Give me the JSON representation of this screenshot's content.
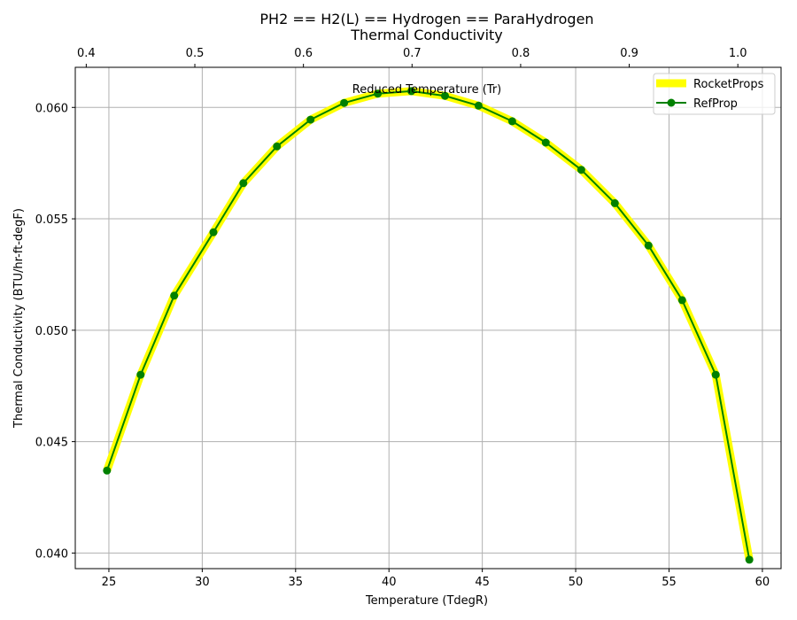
{
  "chart_data": {
    "type": "line",
    "title_line1": "PH2 == H2(L) == Hydrogen == ParaHydrogen",
    "title_line2": "Thermal Conductivity",
    "xlabel": "Temperature (TdegR)",
    "ylabel": "Thermal Conductivity (BTU/hr-ft-degF)",
    "top_xlabel": "Reduced Temperature (Tr)",
    "xlim": [
      23.2,
      61.0
    ],
    "ylim": [
      0.0393,
      0.0618
    ],
    "top_xlim": [
      0.3899,
      1.0398
    ],
    "xticks": [
      25,
      30,
      35,
      40,
      45,
      50,
      55,
      60
    ],
    "xtick_labels": [
      "25",
      "30",
      "35",
      "40",
      "45",
      "50",
      "55",
      "60"
    ],
    "yticks": [
      0.04,
      0.045,
      0.05,
      0.055,
      0.06
    ],
    "ytick_labels": [
      "0.040",
      "0.045",
      "0.050",
      "0.055",
      "0.060"
    ],
    "top_xticks": [
      0.4,
      0.5,
      0.6,
      0.7,
      0.8,
      0.9,
      1.0
    ],
    "top_xtick_labels": [
      "0.4",
      "0.5",
      "0.6",
      "0.7",
      "0.8",
      "0.9",
      "1.0"
    ],
    "grid": true,
    "legend_position": "top-right",
    "series": [
      {
        "name": "RocketProps",
        "color": "#ffff00",
        "x": [
          24.9,
          26.7,
          28.5,
          30.6,
          32.2,
          34.0,
          35.8,
          37.6,
          39.4,
          41.2,
          43.0,
          44.8,
          46.6,
          48.4,
          50.3,
          52.1,
          53.9,
          55.7,
          57.5,
          59.3
        ],
        "values": [
          0.0437,
          0.048,
          0.05155,
          0.0544,
          0.0566,
          0.05825,
          0.05945,
          0.0602,
          0.06062,
          0.06073,
          0.06052,
          0.06008,
          0.05938,
          0.05842,
          0.0572,
          0.0557,
          0.0538,
          0.05135,
          0.048,
          0.0397
        ]
      },
      {
        "name": "RefProp",
        "color": "#008000",
        "marker": "circle",
        "x": [
          24.9,
          26.7,
          28.5,
          30.6,
          32.2,
          34.0,
          35.8,
          37.6,
          39.4,
          41.2,
          43.0,
          44.8,
          46.6,
          48.4,
          50.3,
          52.1,
          53.9,
          55.7,
          57.5,
          59.3
        ],
        "values": [
          0.0437,
          0.048,
          0.05155,
          0.0544,
          0.0566,
          0.05825,
          0.05945,
          0.0602,
          0.06062,
          0.06073,
          0.06052,
          0.06008,
          0.05938,
          0.05842,
          0.0572,
          0.0557,
          0.0538,
          0.05135,
          0.048,
          0.0397
        ]
      }
    ]
  }
}
